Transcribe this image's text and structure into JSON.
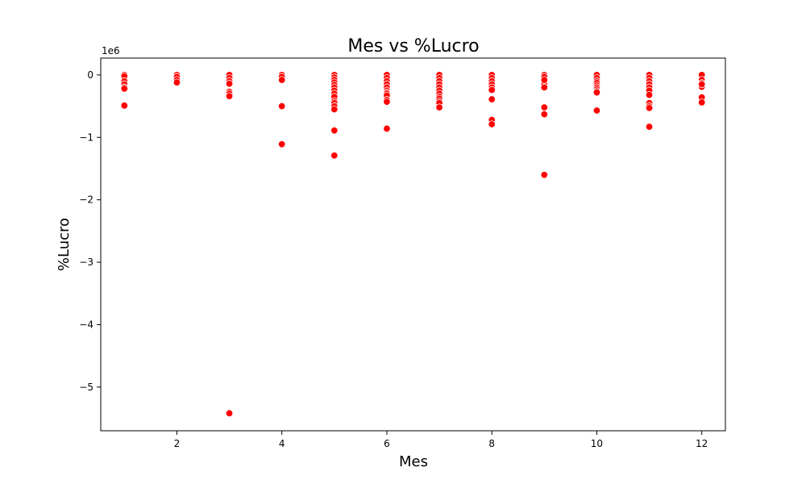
{
  "chart_data": {
    "type": "scatter",
    "title": "Mes vs %Lucro",
    "xlabel": "Mes",
    "ylabel": "%Lucro",
    "y_offset_label": "1e6",
    "xlim": [
      0.55,
      12.45
    ],
    "ylim": [
      -5.7,
      0.27
    ],
    "y_scale_factor": 1000000,
    "xticks": [
      2,
      4,
      6,
      8,
      10,
      12
    ],
    "xtick_labels": [
      "2",
      "4",
      "6",
      "8",
      "10",
      "12"
    ],
    "yticks": [
      0,
      -1,
      -2,
      -3,
      -4,
      -5
    ],
    "ytick_labels": [
      "0",
      "−1",
      "−2",
      "−3",
      "−4",
      "−5"
    ],
    "grid": false,
    "point_color": "#ff0000",
    "series": [
      {
        "x": [
          1,
          1,
          1,
          1,
          1,
          1,
          1,
          2,
          2,
          2,
          2,
          3,
          3,
          3,
          3,
          3,
          3,
          3,
          3,
          4,
          4,
          4,
          4,
          4,
          5,
          5,
          5,
          5,
          5,
          5,
          5,
          5,
          5,
          5,
          5,
          5,
          5,
          5,
          5,
          6,
          6,
          6,
          6,
          6,
          6,
          6,
          6,
          6,
          6,
          6,
          6,
          7,
          7,
          7,
          7,
          7,
          7,
          7,
          7,
          7,
          7,
          7,
          7,
          8,
          8,
          8,
          8,
          8,
          8,
          8,
          8,
          8,
          9,
          9,
          9,
          9,
          9,
          9,
          9,
          9,
          9,
          10,
          10,
          10,
          10,
          10,
          10,
          10,
          10,
          10,
          10,
          11,
          11,
          11,
          11,
          11,
          11,
          11,
          11,
          11,
          11,
          11,
          12,
          12,
          12,
          12,
          12,
          12,
          12,
          12
        ],
        "y": [
          0,
          -0.02,
          -0.1,
          -0.15,
          -0.2,
          -0.22,
          -0.49,
          0,
          -0.03,
          -0.08,
          -0.12,
          0,
          -0.05,
          -0.1,
          -0.14,
          -0.27,
          -0.3,
          -0.34,
          -5.42,
          0,
          -0.03,
          -0.08,
          -0.5,
          -1.11,
          0,
          -0.04,
          -0.08,
          -0.12,
          -0.16,
          -0.2,
          -0.25,
          -0.3,
          -0.35,
          -0.42,
          -0.45,
          -0.5,
          -0.55,
          -0.89,
          -1.29,
          0,
          -0.05,
          -0.1,
          -0.15,
          -0.2,
          -0.25,
          -0.28,
          -0.3,
          -0.33,
          -0.4,
          -0.43,
          -0.86,
          0,
          -0.05,
          -0.1,
          -0.15,
          -0.2,
          -0.25,
          -0.3,
          -0.35,
          -0.38,
          -0.42,
          -0.45,
          -0.52,
          0,
          -0.05,
          -0.1,
          -0.15,
          -0.2,
          -0.24,
          -0.39,
          -0.72,
          -0.79,
          0,
          -0.03,
          -0.1,
          -0.15,
          -0.2,
          -0.52,
          -0.63,
          -1.6,
          -0.08,
          0,
          -0.05,
          -0.1,
          -0.13,
          -0.17,
          -0.2,
          -0.23,
          -0.26,
          -0.28,
          -0.57,
          0,
          -0.05,
          -0.1,
          -0.15,
          -0.2,
          -0.25,
          -0.32,
          -0.45,
          -0.5,
          -0.53,
          -0.83,
          0,
          -0.08,
          -0.13,
          -0.16,
          -0.19,
          -0.36,
          -0.44,
          -0.15
        ]
      }
    ]
  }
}
